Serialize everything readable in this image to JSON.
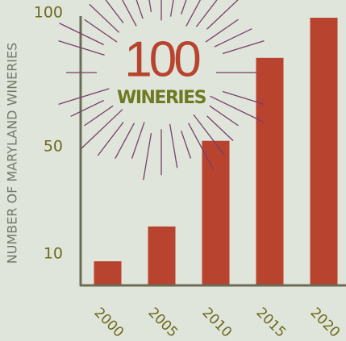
{
  "chart_data": {
    "type": "bar",
    "y_label": "NUMBER OF MARYLAND WINERIES",
    "categories": [
      "2000",
      "2005",
      "2010",
      "2015",
      "2020"
    ],
    "values": [
      9,
      22,
      54,
      85,
      100
    ],
    "color": "#b8432e",
    "ylim": [
      0,
      100
    ],
    "yticks": [
      10,
      50,
      100
    ],
    "grid": false,
    "annotation": {
      "text": "100",
      "subtext": "WINERIES"
    }
  }
}
